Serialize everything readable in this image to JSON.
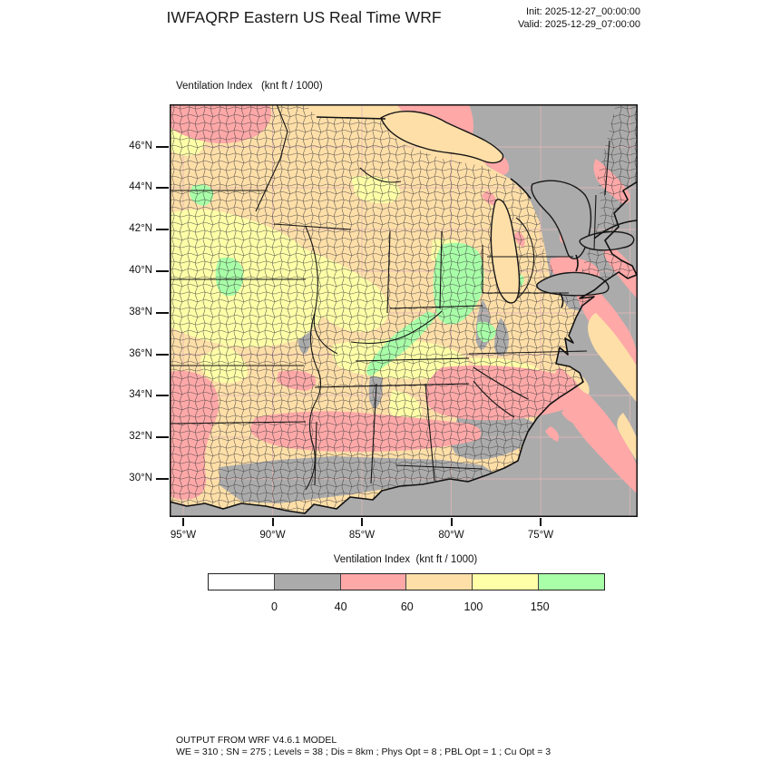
{
  "header": {
    "title": "IWFAQRP Eastern US Real Time WRF",
    "init": "Init: 2025-12-27_00:00:00",
    "valid": "Valid: 2025-12-29_07:00:00"
  },
  "map": {
    "field_label": "Ventilation Index   (knt ft / 1000)",
    "lat_tick_labels": [
      "46°N",
      "44°N",
      "42°N",
      "40°N",
      "38°N",
      "36°N",
      "34°N",
      "32°N",
      "30°N"
    ],
    "lon_tick_labels": [
      "95°W",
      "90°W",
      "85°W",
      "80°W",
      "75°W"
    ]
  },
  "legend": {
    "title": "Ventilation Index  (knt ft / 1000)",
    "tick_labels": [
      "0",
      "40",
      "60",
      "100",
      "150"
    ],
    "segments": [
      {
        "name": "below-0",
        "hex": "#FFFFFF"
      },
      {
        "name": "0-40",
        "hex": "#ABABAB"
      },
      {
        "name": "40-60",
        "hex": "#FFA8A8"
      },
      {
        "name": "60-100",
        "hex": "#FFDFA8"
      },
      {
        "name": "100-150",
        "hex": "#FFFFA8"
      },
      {
        "name": "above-150",
        "hex": "#A8FFA8"
      }
    ]
  },
  "footer": {
    "line1": "OUTPUT FROM WRF V4.6.1 MODEL",
    "line2": "WE = 310 ; SN = 275 ; Levels = 38 ; Dis = 8km ; Phys Opt = 8 ; PBL Opt = 1 ; Cu Opt = 3"
  },
  "palette": {
    "land": "#FFDFA8",
    "gray": "#ABABAB",
    "pink": "#FFA8A8",
    "yellow": "#FFFFA8",
    "green": "#A8FFA8",
    "white": "#FFFFFF",
    "outline": "#111111",
    "county_line": "#3d3d3d",
    "graticule": "#E3B6B6"
  }
}
